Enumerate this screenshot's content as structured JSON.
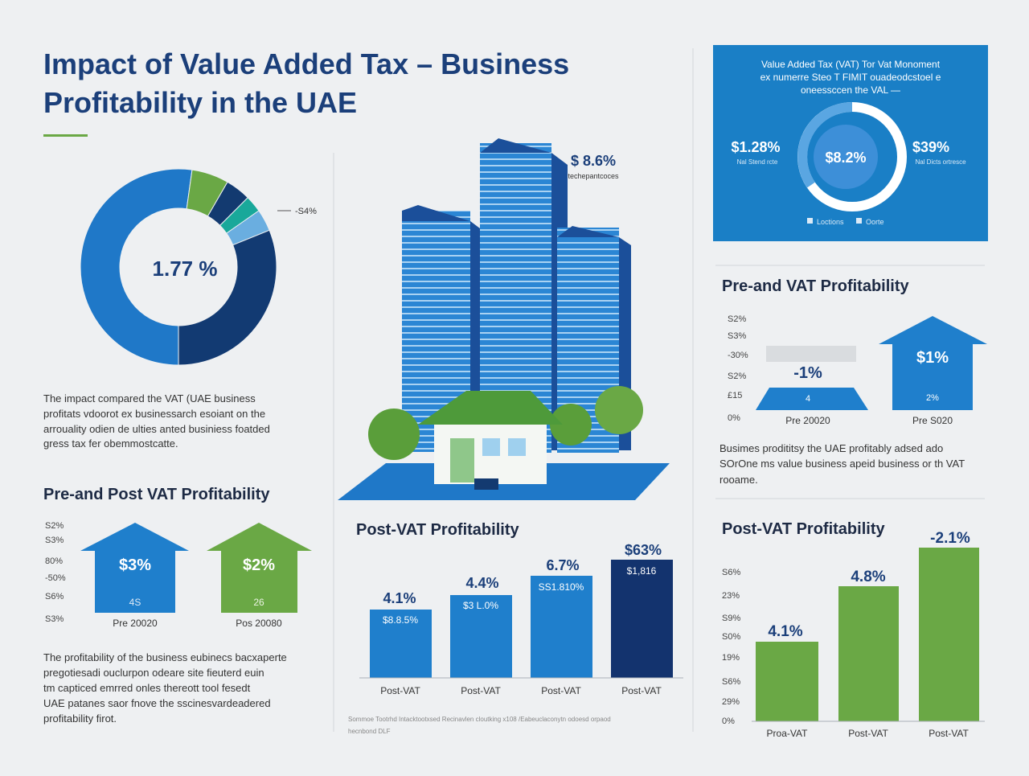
{
  "header": {
    "title_lines": [
      "Impact of Value Added Tax – Business",
      "Profitability in the UAE"
    ]
  },
  "donut": {
    "center_label": "1.77 %",
    "side_label": "-S4%"
  },
  "intro_text": [
    "The impact compared the VAT (UAE business",
    "profitats vdoorot ex businessarch esoiant on the",
    "arrouality odien de ulties anted businiess foatded",
    "gress tax fer obemmostcatte."
  ],
  "pre_post": {
    "title": "Pre-and Post VAT Profitability",
    "axis_labels": [
      "S2%",
      "S3%",
      "80%",
      "-50%",
      "S6%",
      "S3%"
    ],
    "arrows": [
      {
        "value": "$3%",
        "sub": "4S",
        "label": "Pre 20020"
      },
      {
        "value": "$2%",
        "sub": "26",
        "label": "Pos 20080"
      }
    ]
  },
  "pre_post_text": [
    "The profitability of the business eubinecs bacxaperte",
    "pregotiesadi ouclurpon odeare site fieuterd euin",
    "tm capticed emrred onles thereott tool fesedt",
    "UAE patanes saor fnove the sscinesvardeadered",
    "profitability firot."
  ],
  "tower": {
    "value": "$ 8.6%",
    "caption": "techepantcoces"
  },
  "post_vat": {
    "title": "Post-VAT Profitability",
    "bars": [
      {
        "top": "4.1%",
        "inner": "$8.8.5%",
        "label": "Post-VAT"
      },
      {
        "top": "4.4%",
        "inner": "$3 L.0%",
        "label": "Post-VAT"
      },
      {
        "top": "6.7%",
        "inner": "SS1.810%",
        "label": "Post-VAT"
      },
      {
        "top": "$63%",
        "inner": "$1,816",
        "label": "Post-VAT"
      }
    ]
  },
  "source": [
    "Sommoe Tootrhd Intacktootxsed Recinavlen cloutking x108 /Eabeuclaconytn odoesd orpaod",
    "hecnbond DLF"
  ],
  "info_box": {
    "title_lines": [
      "Value Added Tax (VAT) Tor Vat Monoment",
      "ex numerre Steo T FIMIT ouadeodcstoel e",
      "oneessccen the VAL —"
    ],
    "left_value": "$1.28%",
    "left_caption": "Nal Stend rcte",
    "center_value": "$8.2%",
    "right_value": "$39%",
    "right_caption": "Nal Dicts ortresce",
    "legend": [
      "Loctions",
      "Oorte"
    ]
  },
  "pre_vat": {
    "title": "Pre-and VAT Profitability",
    "axis_labels": [
      "S2%",
      "S3%",
      "-30%",
      "S2%",
      "£15",
      "0%"
    ],
    "arrows": [
      {
        "value": "-1%",
        "sub": "4",
        "label": "Pre 20020"
      },
      {
        "value": "$1%",
        "sub": "2%",
        "label": "Pre S020"
      }
    ]
  },
  "pre_vat_text": [
    "Busimes prodititsy the UAE profitably adsed ado",
    "SOrOne ms value business apeid business or th VAT",
    "rooame."
  ],
  "post_vat_right": {
    "title": "Post-VAT Profitability",
    "axis_labels": [
      "S6%",
      "23%",
      "S9%",
      "S0%",
      "19%",
      "S6%",
      "29%",
      "0%"
    ],
    "bars": [
      {
        "top": "4.1%",
        "label": "Proa-VAT"
      },
      {
        "top": "4.8%",
        "label": "Post-VAT"
      },
      {
        "top": "-2.1%",
        "label": "Post-VAT"
      }
    ]
  }
}
